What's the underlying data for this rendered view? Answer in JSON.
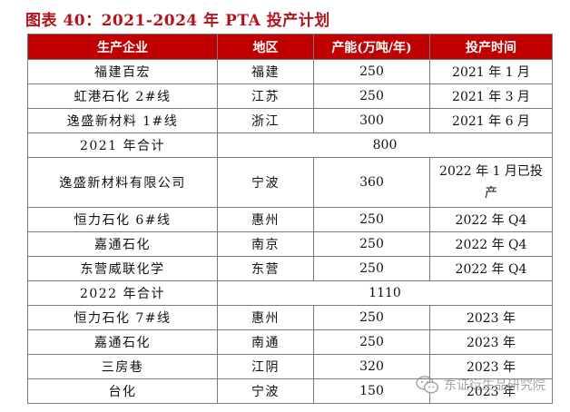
{
  "title": "图表 40：2021-2024 年 PTA 投产计划",
  "headers": [
    "生产企业",
    "地区",
    "产能(万吨/年)",
    "投产时间"
  ],
  "rows": [
    {
      "company": "福建百宏",
      "region": "福建",
      "capacity": "250",
      "time": "2021 年 1 月"
    },
    {
      "company": "虹港石化 2#线",
      "region": "江苏",
      "capacity": "250",
      "time": "2021 年 3 月"
    },
    {
      "company": "逸盛新材料 1#线",
      "region": "浙江",
      "capacity": "300",
      "time": "2021 年 6 月"
    }
  ],
  "subtotal_2021": {
    "label": "2021 年合计",
    "value": "800"
  },
  "rows_2022": [
    {
      "company": "逸盛新材料有限公司",
      "region": "宁波",
      "capacity": "360",
      "time": "2022 年 1 月已投产"
    },
    {
      "company": "恒力石化 6#线",
      "region": "惠州",
      "capacity": "250",
      "time": "2022 年 Q4"
    },
    {
      "company": "嘉通石化",
      "region": "南京",
      "capacity": "250",
      "time": "2022 年 Q4"
    },
    {
      "company": "东营威联化学",
      "region": "东营",
      "capacity": "250",
      "time": "2022 年 Q4"
    }
  ],
  "subtotal_2022": {
    "label": "2022 年合计",
    "value": "1110"
  },
  "rows_2023": [
    {
      "company": "恒力石化 7#线",
      "region": "惠州",
      "capacity": "250",
      "time": "2023 年"
    },
    {
      "company": "嘉通石化",
      "region": "南通",
      "capacity": "250",
      "time": "2023 年"
    },
    {
      "company": "三房巷",
      "region": "江阴",
      "capacity": "320",
      "time": "2023 年"
    },
    {
      "company": "台化",
      "region": "宁波",
      "capacity": "150",
      "time": "2023 年"
    }
  ],
  "watermark": "东证衍生品研究院"
}
